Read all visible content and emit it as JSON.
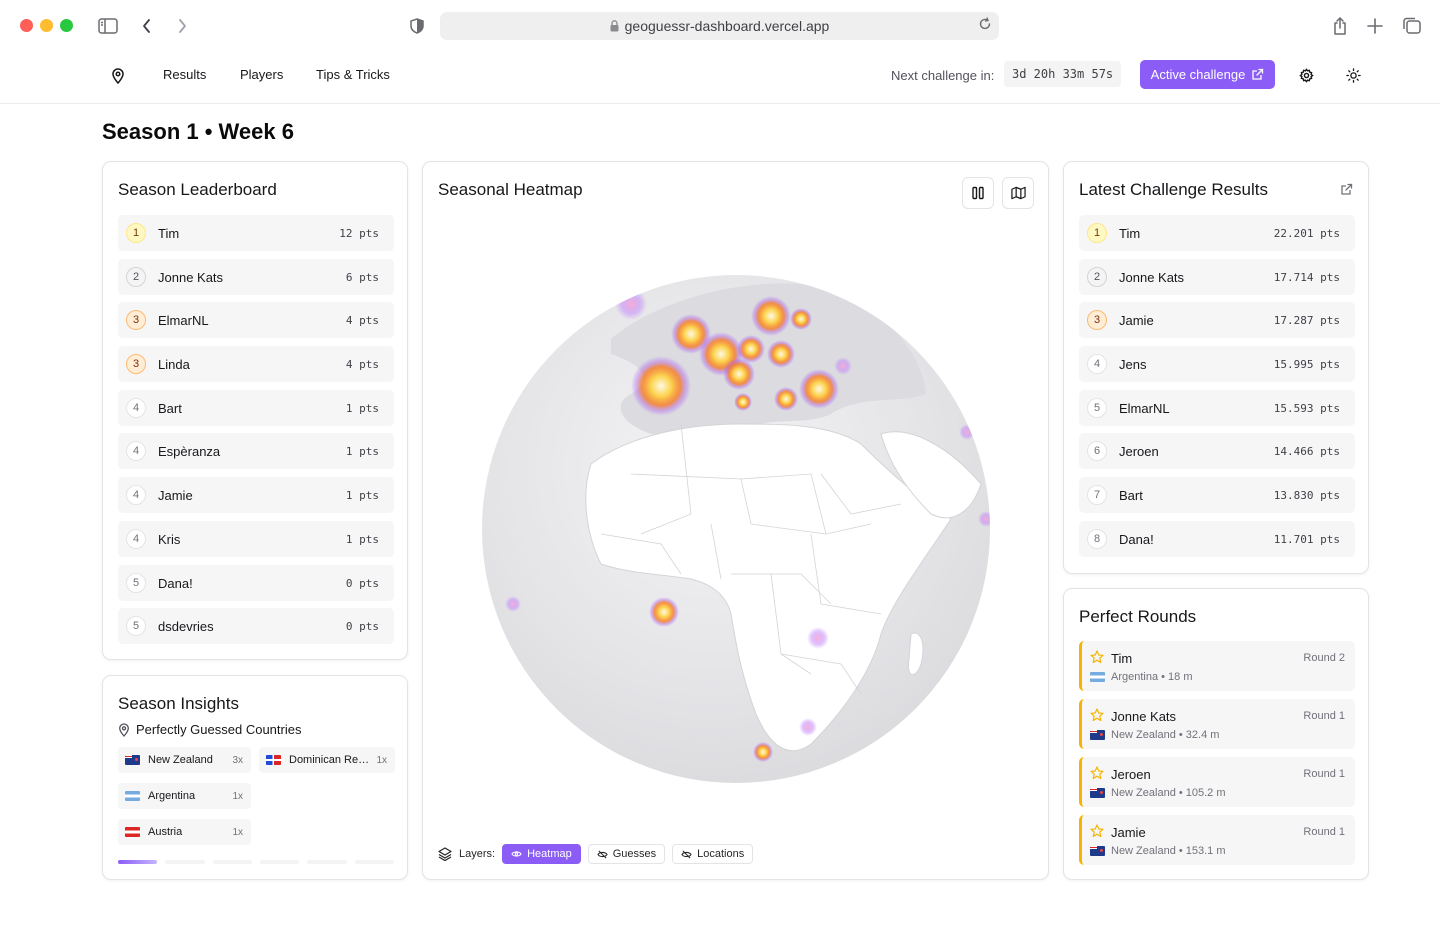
{
  "browser": {
    "url": "geoguessr-dashboard.vercel.app"
  },
  "nav": {
    "links": [
      "Results",
      "Players",
      "Tips & Tricks"
    ],
    "countdown_label": "Next challenge in:",
    "countdown": "3d 20h 33m 57s",
    "active_challenge": "Active challenge"
  },
  "page": {
    "title": "Season 1 • Week 6"
  },
  "leaderboard": {
    "title": "Season Leaderboard",
    "rows": [
      {
        "rank": "1",
        "name": "Tim",
        "pts": "12 pts"
      },
      {
        "rank": "2",
        "name": "Jonne Kats",
        "pts": "6 pts"
      },
      {
        "rank": "3",
        "name": "ElmarNL",
        "pts": "4 pts"
      },
      {
        "rank": "3",
        "name": "Linda",
        "pts": "4 pts"
      },
      {
        "rank": "4",
        "name": "Bart",
        "pts": "1 pts"
      },
      {
        "rank": "4",
        "name": "Espèranza",
        "pts": "1 pts"
      },
      {
        "rank": "4",
        "name": "Jamie",
        "pts": "1 pts"
      },
      {
        "rank": "4",
        "name": "Kris",
        "pts": "1 pts"
      },
      {
        "rank": "5",
        "name": "Dana!",
        "pts": "0 pts"
      },
      {
        "rank": "5",
        "name": "dsdevries",
        "pts": "0 pts"
      }
    ]
  },
  "insights": {
    "title": "Season Insights",
    "subtitle": "Perfectly Guessed Countries",
    "countries": [
      {
        "name": "New Zealand",
        "count": "3x",
        "flag": "nz"
      },
      {
        "name": "Dominican Re…",
        "count": "1x",
        "flag": "do"
      },
      {
        "name": "Argentina",
        "count": "1x",
        "flag": "ar"
      },
      {
        "name": "Austria",
        "count": "1x",
        "flag": "at"
      }
    ]
  },
  "heatmap": {
    "title": "Seasonal Heatmap",
    "layers_label": "Layers:",
    "layers": [
      {
        "label": "Heatmap",
        "active": true
      },
      {
        "label": "Guesses",
        "active": false
      },
      {
        "label": "Locations",
        "active": false
      }
    ]
  },
  "latest": {
    "title": "Latest Challenge Results",
    "rows": [
      {
        "rank": "1",
        "name": "Tim",
        "pts": "22.201 pts"
      },
      {
        "rank": "2",
        "name": "Jonne Kats",
        "pts": "17.714 pts"
      },
      {
        "rank": "3",
        "name": "Jamie",
        "pts": "17.287 pts"
      },
      {
        "rank": "4",
        "name": "Jens",
        "pts": "15.995 pts"
      },
      {
        "rank": "5",
        "name": "ElmarNL",
        "pts": "15.593 pts"
      },
      {
        "rank": "6",
        "name": "Jeroen",
        "pts": "14.466 pts"
      },
      {
        "rank": "7",
        "name": "Bart",
        "pts": "13.830 pts"
      },
      {
        "rank": "8",
        "name": "Dana!",
        "pts": "11.701 pts"
      }
    ]
  },
  "perfect": {
    "title": "Perfect Rounds",
    "rounds": [
      {
        "name": "Tim",
        "round": "Round 2",
        "location": "Argentina • 18 m",
        "flag": "ar"
      },
      {
        "name": "Jonne Kats",
        "round": "Round 1",
        "location": "New Zealand • 32.4 m",
        "flag": "nz"
      },
      {
        "name": "Jeroen",
        "round": "Round 1",
        "location": "New Zealand • 105.2 m",
        "flag": "nz"
      },
      {
        "name": "Jamie",
        "round": "Round 1",
        "location": "New Zealand • 153.1 m",
        "flag": "nz"
      }
    ]
  },
  "colors": {
    "accent": "#8b5cf6",
    "gold": "#f5b400"
  }
}
